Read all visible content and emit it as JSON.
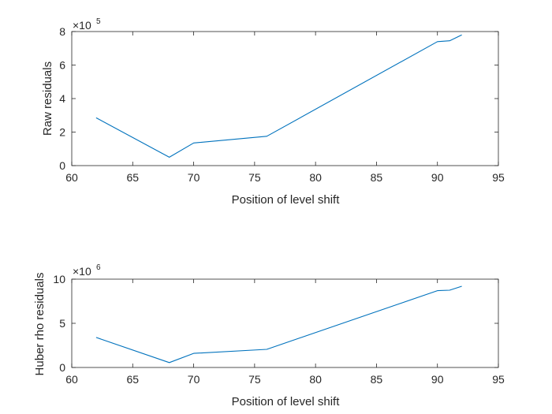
{
  "chart_data": [
    {
      "type": "line",
      "xlabel": "Position of level shift",
      "ylabel": "Raw residuals",
      "exponent_base": "×10",
      "exponent": "5",
      "xlim": [
        60,
        95
      ],
      "ylim": [
        0,
        8
      ],
      "xticks": [
        60,
        65,
        70,
        75,
        80,
        85,
        90,
        95
      ],
      "yticks": [
        0,
        2,
        4,
        6,
        8
      ],
      "grid": false,
      "color": "#0072BD",
      "x": [
        62,
        68,
        70,
        76,
        90,
        91,
        92
      ],
      "y": [
        2.85,
        0.5,
        1.35,
        1.75,
        7.4,
        7.45,
        7.8
      ]
    },
    {
      "type": "line",
      "xlabel": "Position of level shift",
      "ylabel": "Huber rho residuals",
      "exponent_base": "×10",
      "exponent": "6",
      "xlim": [
        60,
        95
      ],
      "ylim": [
        0,
        10
      ],
      "xticks": [
        60,
        65,
        70,
        75,
        80,
        85,
        90,
        95
      ],
      "yticks": [
        0,
        5,
        10
      ],
      "grid": false,
      "color": "#0072BD",
      "x": [
        62,
        68,
        70,
        76,
        90,
        91,
        92
      ],
      "y": [
        3.4,
        0.55,
        1.6,
        2.05,
        8.7,
        8.75,
        9.2
      ]
    }
  ]
}
